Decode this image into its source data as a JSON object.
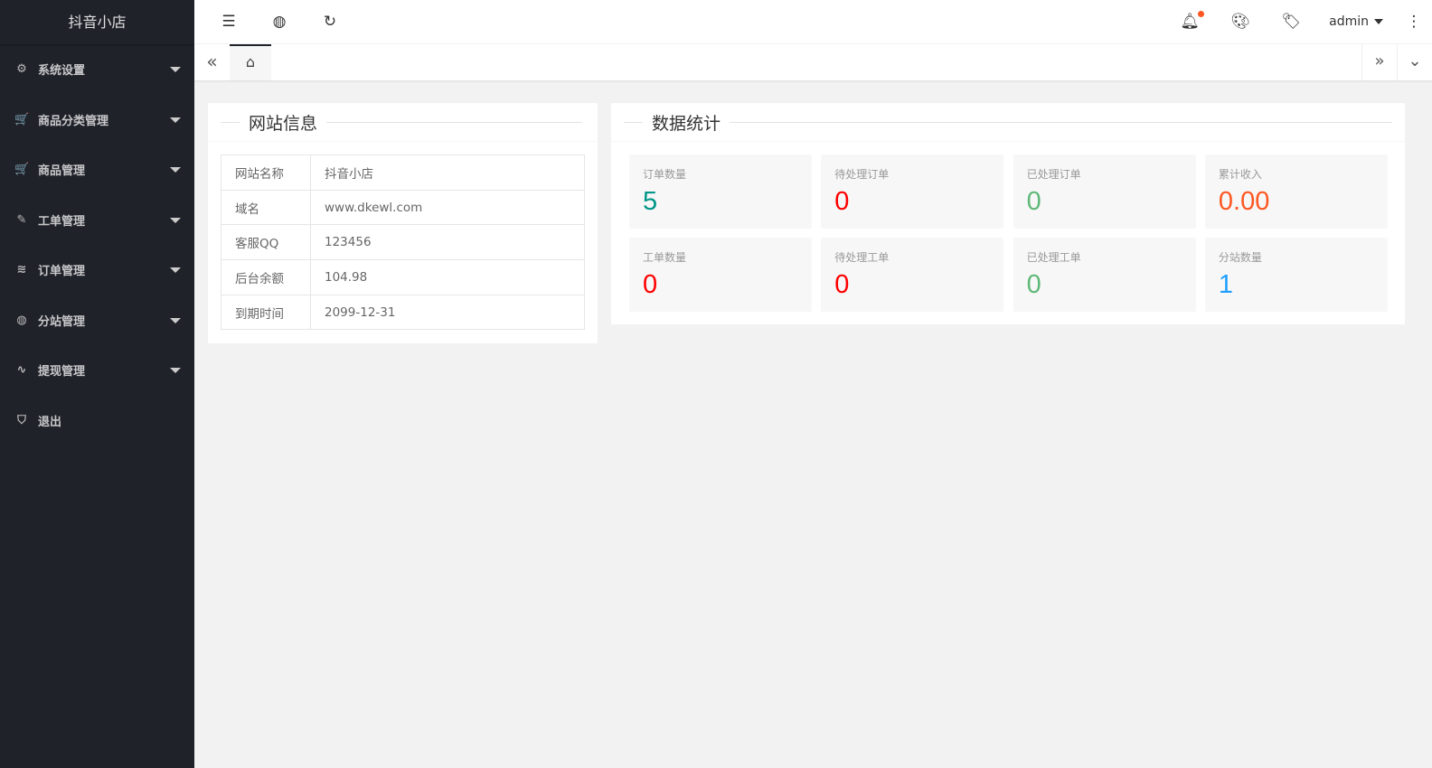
{
  "app": {
    "title": "抖音小店"
  },
  "sidebar": {
    "items": [
      {
        "label": "系统设置",
        "icon": "gear-icon",
        "glyph": "⚙",
        "caret": true
      },
      {
        "label": "商品分类管理",
        "icon": "cart-icon",
        "glyph": "🛒",
        "caret": true
      },
      {
        "label": "商品管理",
        "icon": "cart-icon",
        "glyph": "🛒",
        "caret": true
      },
      {
        "label": "工单管理",
        "icon": "form-icon",
        "glyph": "✎",
        "caret": true
      },
      {
        "label": "订单管理",
        "icon": "layers-icon",
        "glyph": "≋",
        "caret": true
      },
      {
        "label": "分站管理",
        "icon": "globe-icon",
        "glyph": "◍",
        "caret": true
      },
      {
        "label": "提现管理",
        "icon": "pulse-icon",
        "glyph": "∿",
        "caret": true
      },
      {
        "label": "退出",
        "icon": "shield-icon",
        "glyph": "⛉",
        "caret": false
      }
    ]
  },
  "header": {
    "user": "admin",
    "notification_dot_color": "#ff5722"
  },
  "site_info": {
    "title": "网站信息",
    "rows": [
      {
        "key": "网站名称",
        "value": "抖音小店"
      },
      {
        "key": "域名",
        "value": "www.dkewl.com"
      },
      {
        "key": "客服QQ",
        "value": "123456"
      },
      {
        "key": "后台余额",
        "value": "104.98"
      },
      {
        "key": "到期时间",
        "value": "2099-12-31"
      }
    ]
  },
  "stats": {
    "title": "数据统计",
    "items": [
      {
        "label": "订单数量",
        "value": "5",
        "color": "#009688"
      },
      {
        "label": "待处理订单",
        "value": "0",
        "color": "#ff0000"
      },
      {
        "label": "已处理订单",
        "value": "0",
        "color": "#5fb878"
      },
      {
        "label": "累计收入",
        "value": "0.00",
        "color": "#ff5722"
      },
      {
        "label": "工单数量",
        "value": "0",
        "color": "#ff0000"
      },
      {
        "label": "待处理工单",
        "value": "0",
        "color": "#ff0000"
      },
      {
        "label": "已处理工单",
        "value": "0",
        "color": "#5fb878"
      },
      {
        "label": "分站数量",
        "value": "1",
        "color": "#1e9fff"
      }
    ]
  }
}
